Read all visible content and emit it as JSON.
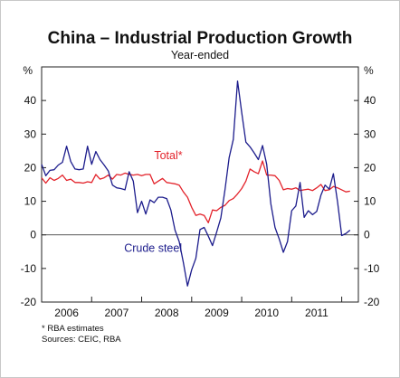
{
  "chart_data": {
    "type": "line",
    "title": "China – Industrial Production Growth",
    "subtitle": "Year-ended",
    "y_unit_left": "%",
    "y_unit_right": "%",
    "ylim": [
      -20,
      50
    ],
    "yticks": [
      -20,
      -10,
      0,
      10,
      20,
      30,
      40
    ],
    "x_range": [
      2005.5,
      2011.833
    ],
    "x_tick_labels": [
      {
        "label": "2006",
        "center": 2006.0
      },
      {
        "label": "2007",
        "center": 2007.0
      },
      {
        "label": "2008",
        "center": 2008.0
      },
      {
        "label": "2009",
        "center": 2009.0
      },
      {
        "label": "2010",
        "center": 2010.0
      },
      {
        "label": "2011",
        "center": 2011.0
      }
    ],
    "x_year_boundaries": [
      2006.5,
      2007.5,
      2008.5,
      2009.5,
      2010.5,
      2011.5
    ],
    "grid": false,
    "series": [
      {
        "name": "Total*",
        "color": "#e3232b",
        "x": [
          2005.5,
          2005.583,
          2005.667,
          2005.75,
          2005.833,
          2005.917,
          2006.0,
          2006.083,
          2006.167,
          2006.25,
          2006.333,
          2006.417,
          2006.5,
          2006.583,
          2006.667,
          2006.75,
          2006.833,
          2006.917,
          2007.0,
          2007.083,
          2007.167,
          2007.25,
          2007.333,
          2007.417,
          2007.5,
          2007.583,
          2007.667,
          2007.75,
          2007.833,
          2007.917,
          2008.0,
          2008.083,
          2008.167,
          2008.25,
          2008.333,
          2008.417,
          2008.5,
          2008.583,
          2008.667,
          2008.75,
          2008.833,
          2008.917,
          2009.0,
          2009.083,
          2009.167,
          2009.25,
          2009.333,
          2009.417,
          2009.5,
          2009.583,
          2009.667,
          2009.75,
          2009.833,
          2009.917,
          2010.0,
          2010.083,
          2010.167,
          2010.25,
          2010.333,
          2010.417,
          2010.5,
          2010.583,
          2010.667,
          2010.75,
          2010.833,
          2010.917,
          2011.0,
          2011.083,
          2011.167,
          2011.25,
          2011.333,
          2011.417,
          2011.5,
          2011.583,
          2011.667
        ],
        "values": [
          17.0,
          15.4,
          17.0,
          16.2,
          16.8,
          17.8,
          16.2,
          16.6,
          15.6,
          15.6,
          15.4,
          15.8,
          15.6,
          18.0,
          16.6,
          17.0,
          17.8,
          16.6,
          18.0,
          17.8,
          18.4,
          18.0,
          17.8,
          18.0,
          17.6,
          18.0,
          18.0,
          15.2,
          16.0,
          16.8,
          15.6,
          15.4,
          15.2,
          14.8,
          12.8,
          11.2,
          8.2,
          5.8,
          6.2,
          5.8,
          3.6,
          7.4,
          7.2,
          8.2,
          8.8,
          10.2,
          10.8,
          12.2,
          13.8,
          16.0,
          19.6,
          18.8,
          18.2,
          22.0,
          17.8,
          17.8,
          17.6,
          16.2,
          13.4,
          13.8,
          13.6,
          14.0,
          13.2,
          13.4,
          13.6,
          13.2,
          14.0,
          15.0,
          13.2,
          13.4,
          14.4,
          14.0,
          13.4,
          12.8,
          13.0
        ]
      },
      {
        "name": "Crude steel",
        "color": "#1c1c8c",
        "x": [
          2005.5,
          2005.583,
          2005.667,
          2005.75,
          2005.833,
          2005.917,
          2006.0,
          2006.083,
          2006.167,
          2006.25,
          2006.333,
          2006.417,
          2006.5,
          2006.583,
          2006.667,
          2006.75,
          2006.833,
          2006.917,
          2007.0,
          2007.083,
          2007.167,
          2007.25,
          2007.333,
          2007.417,
          2007.5,
          2007.583,
          2007.667,
          2007.75,
          2007.833,
          2007.917,
          2008.0,
          2008.083,
          2008.167,
          2008.25,
          2008.333,
          2008.417,
          2008.5,
          2008.583,
          2008.667,
          2008.75,
          2008.833,
          2008.917,
          2009.0,
          2009.083,
          2009.167,
          2009.25,
          2009.333,
          2009.417,
          2009.5,
          2009.583,
          2009.667,
          2009.75,
          2009.833,
          2009.917,
          2010.0,
          2010.083,
          2010.167,
          2010.25,
          2010.333,
          2010.417,
          2010.5,
          2010.583,
          2010.667,
          2010.75,
          2010.833,
          2010.917,
          2011.0,
          2011.083,
          2011.167,
          2011.25,
          2011.333,
          2011.417,
          2011.5,
          2011.583,
          2011.667
        ],
        "values": [
          21.0,
          17.6,
          19.2,
          19.4,
          20.8,
          21.6,
          26.4,
          21.8,
          19.6,
          19.4,
          19.6,
          26.4,
          21.0,
          24.8,
          22.4,
          20.8,
          19.0,
          14.8,
          14.0,
          13.8,
          13.4,
          18.8,
          16.0,
          6.6,
          10.0,
          6.2,
          10.4,
          9.6,
          11.2,
          11.2,
          10.8,
          7.4,
          1.4,
          -2.0,
          -8.2,
          -15.2,
          -10.4,
          -7.0,
          1.6,
          2.2,
          -0.4,
          -3.2,
          0.8,
          5.0,
          13.6,
          23.0,
          28.4,
          45.8,
          36.4,
          27.6,
          26.2,
          24.4,
          22.4,
          26.6,
          21.0,
          9.2,
          2.2,
          -1.2,
          -5.2,
          -2.0,
          7.2,
          8.6,
          15.6,
          5.2,
          7.2,
          6.0,
          7.0,
          11.8,
          14.8,
          13.6,
          18.2,
          9.8,
          -0.2,
          0.4,
          1.4
        ]
      }
    ],
    "series_labels": [
      {
        "text": "Total*",
        "color": "#e3232b",
        "x": 2007.75,
        "y": 22.5
      },
      {
        "text": "Crude steel",
        "color": "#1c1c8c",
        "x": 2007.15,
        "y": -5.0
      }
    ],
    "footnotes": [
      "*    RBA estimates",
      "Sources: CEIC, RBA"
    ]
  }
}
